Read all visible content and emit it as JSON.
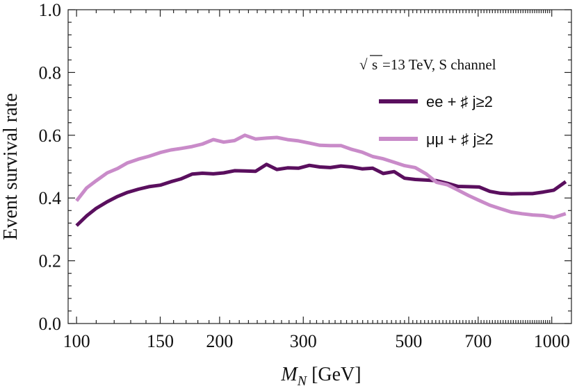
{
  "chart_data": {
    "type": "line",
    "title": "",
    "xlabel": "M_N [GeV]",
    "xlabel_main": "M",
    "xlabel_sub": "N",
    "xlabel_unit": " [GeV]",
    "ylabel": "Event survival rate",
    "xscale": "log",
    "xlim": [
      96,
      1100
    ],
    "ylim": [
      0.0,
      1.0
    ],
    "xticks": [
      100,
      150,
      200,
      300,
      500,
      700,
      1000
    ],
    "xtick_labels": [
      "100",
      "150",
      "200",
      "300",
      "500",
      "700",
      "1000"
    ],
    "yticks": [
      0.0,
      0.2,
      0.4,
      0.6,
      0.8,
      1.0
    ],
    "ytick_labels": [
      "0.0",
      "0.2",
      "0.4",
      "0.6",
      "0.8",
      "1.0"
    ],
    "annotation": {
      "sqrt_symbol": "√",
      "sqrt_arg": "s",
      "text": " =13 TeV, S channel"
    },
    "legend_position": "top-right",
    "series": [
      {
        "name": "ee + ♯ j≥2",
        "legend_label": "ee + ♯ j≥2",
        "color": "#5a0f5e",
        "x": [
          100,
          105,
          110,
          116,
          122,
          128,
          135,
          142,
          150,
          158,
          166,
          175,
          184,
          194,
          204,
          215,
          226,
          238,
          251,
          264,
          278,
          293,
          309,
          325,
          342,
          360,
          379,
          399,
          420,
          442,
          466,
          490,
          516,
          544,
          572,
          603,
          635,
          668,
          704,
          741,
          780,
          822,
          865,
          911,
          960,
          1010,
          1070
        ],
        "values": [
          0.312,
          0.343,
          0.367,
          0.388,
          0.405,
          0.418,
          0.428,
          0.436,
          0.441,
          0.452,
          0.461,
          0.476,
          0.479,
          0.477,
          0.48,
          0.487,
          0.486,
          0.485,
          0.507,
          0.491,
          0.496,
          0.495,
          0.504,
          0.499,
          0.497,
          0.502,
          0.499,
          0.493,
          0.495,
          0.478,
          0.484,
          0.463,
          0.459,
          0.457,
          0.455,
          0.447,
          0.437,
          0.436,
          0.435,
          0.421,
          0.415,
          0.413,
          0.414,
          0.414,
          0.419,
          0.425,
          0.452
        ]
      },
      {
        "name": "μμ + ♯ j≥2",
        "legend_label": "μμ + ♯ j≥2",
        "color": "#c98bc9",
        "x": [
          100,
          105,
          110,
          116,
          122,
          128,
          135,
          142,
          150,
          158,
          166,
          175,
          184,
          194,
          204,
          215,
          226,
          238,
          251,
          264,
          278,
          293,
          309,
          325,
          342,
          360,
          379,
          399,
          420,
          442,
          466,
          490,
          516,
          544,
          572,
          603,
          635,
          668,
          704,
          741,
          780,
          822,
          865,
          911,
          960,
          1010,
          1070
        ],
        "values": [
          0.391,
          0.432,
          0.455,
          0.48,
          0.494,
          0.512,
          0.524,
          0.533,
          0.545,
          0.553,
          0.558,
          0.564,
          0.572,
          0.586,
          0.578,
          0.583,
          0.6,
          0.588,
          0.591,
          0.593,
          0.586,
          0.582,
          0.575,
          0.568,
          0.567,
          0.567,
          0.555,
          0.546,
          0.532,
          0.525,
          0.514,
          0.503,
          0.497,
          0.477,
          0.45,
          0.442,
          0.425,
          0.408,
          0.392,
          0.377,
          0.366,
          0.355,
          0.35,
          0.346,
          0.344,
          0.338,
          0.35
        ]
      }
    ]
  }
}
